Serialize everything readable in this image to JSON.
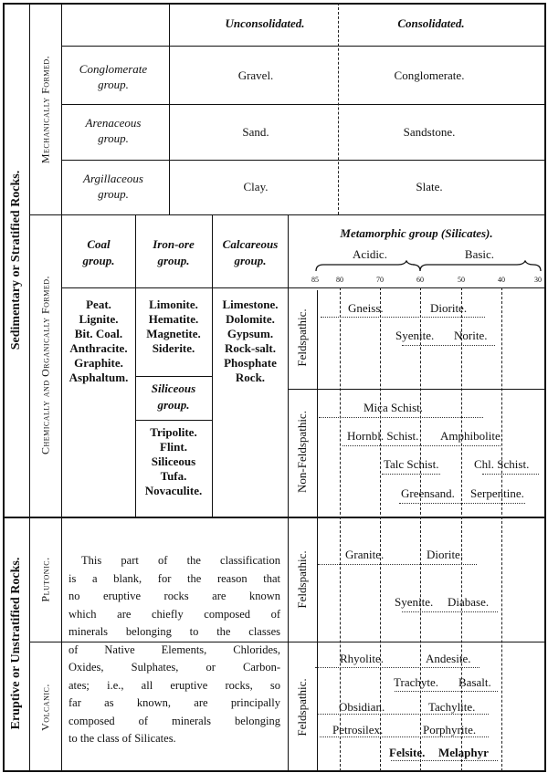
{
  "sedimentary": {
    "label": "Sedimentary or Stratified Rocks.",
    "mechanical": {
      "label": "Mechanically Formed.",
      "unconsolidated": "Unconsolidated.",
      "consolidated": "Consolidated.",
      "rows": [
        {
          "group": [
            "Conglomerate",
            "group."
          ],
          "unconsolidated": "Gravel.",
          "consolidated": "Conglomerate."
        },
        {
          "group": [
            "Arenaceous",
            "group."
          ],
          "unconsolidated": "Sand.",
          "consolidated": "Sandstone."
        },
        {
          "group": [
            "Argillaceous",
            "group."
          ],
          "unconsolidated": "Clay.",
          "consolidated": "Slate."
        }
      ]
    },
    "chemical": {
      "label": "Chemically and Organically Formed.",
      "coal": {
        "header": [
          "Coal",
          "group."
        ],
        "items": [
          "Peat.",
          "Lignite.",
          "Bit. Coal.",
          "Anthracite.",
          "Graphite.",
          "Asphaltum."
        ]
      },
      "iron": {
        "header": [
          "Iron-ore",
          "group."
        ],
        "items": [
          "Limonite.",
          "Hematite.",
          "Magnetite.",
          "Siderite."
        ]
      },
      "siliceous": {
        "header": [
          "Siliceous",
          "group."
        ],
        "items": [
          "Tripolite.",
          "Flint.",
          "Siliceous",
          "Tufa.",
          "Novaculite."
        ]
      },
      "calcareous": {
        "header": [
          "Calcareous",
          "group."
        ],
        "items": [
          "Limestone.",
          "Dolomite.",
          "Gypsum.",
          "Rock-salt.",
          "Phosphate",
          "Rock."
        ]
      },
      "metamorphic": {
        "header": "Metamorphic group (Silicates).",
        "acidic": "Acidic.",
        "basic": "Basic.",
        "scale": [
          "85",
          "80",
          "70",
          "60",
          "50",
          "40",
          "30"
        ],
        "feldspathic": {
          "label": "Feldspathic.",
          "rocks": [
            "Gneiss.",
            "Diorite.",
            "Syenite.",
            "Norite."
          ]
        },
        "non_feldspathic": {
          "label": "Non-Feldspathic.",
          "rocks": [
            "Mica Schist.",
            "Hornbl. Schist.",
            "Amphibolite.",
            "Talc Schist.",
            "Chl. Schist.",
            "Greensand.",
            "Serpentine."
          ]
        }
      }
    }
  },
  "eruptive": {
    "label": "Eruptive or Unstratified Rocks.",
    "paragraph": [
      "This part of the classification",
      "is a blank, for the reason that",
      "no eruptive rocks are known",
      "which are chiefly composed of",
      "minerals belonging to the classes",
      "of Native Elements, Chlorides,",
      "Oxides, Sulphates, or Carbon-",
      "ates; i.e., all eruptive rocks, so",
      "far as known, are principally",
      "composed of minerals belonging",
      "to the class of Silicates."
    ],
    "plutonic": {
      "label": "Plutonic.",
      "sub": "Feldspathic.",
      "rocks": [
        "Granite.",
        "Diorite.",
        "Syenite.",
        "Diabase."
      ]
    },
    "volcanic": {
      "label": "Volcanic.",
      "sub": "Feldspathic.",
      "rocks": [
        "Rhyolite.",
        "Andesite.",
        "Trachyte.",
        "Basalt.",
        "Obsidian.",
        "Tachylite.",
        "Petrosilex.",
        "Porphyrite.",
        "Felsite.",
        "Melaphyr"
      ]
    }
  }
}
